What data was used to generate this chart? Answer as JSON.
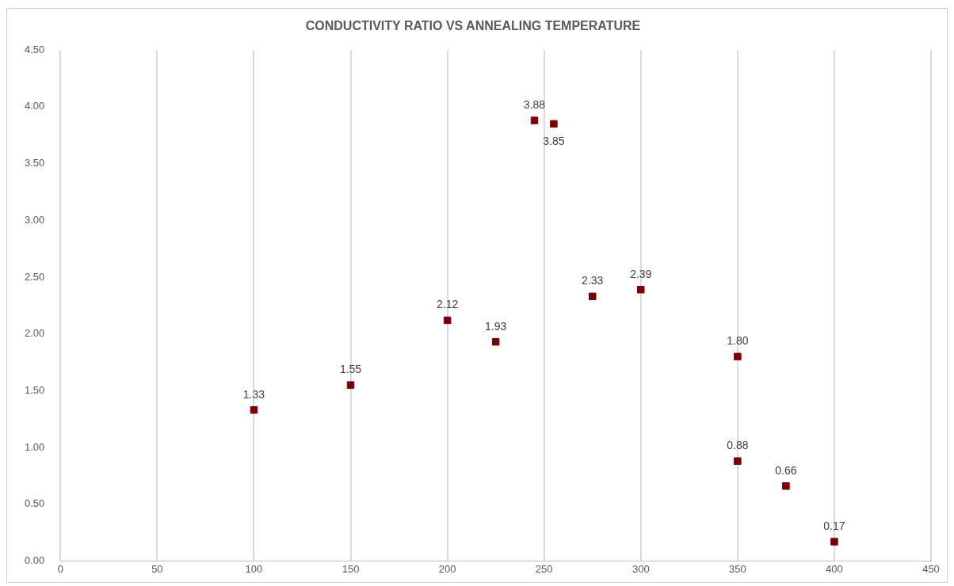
{
  "chart_data": {
    "type": "scatter",
    "title": "CONDUCTIVITY RATIO VS ANNEALING TEMPERATURE",
    "x": [
      100,
      150,
      200,
      225,
      245,
      255,
      275,
      300,
      350,
      350,
      375,
      400
    ],
    "values": [
      1.33,
      1.55,
      2.12,
      1.93,
      3.88,
      3.85,
      2.33,
      2.39,
      1.8,
      0.88,
      0.66,
      0.17
    ],
    "value_labels": [
      "1.33",
      "1.55",
      "2.12",
      "1.93",
      "3.88",
      "3.85",
      "2.33",
      "2.39",
      "1.80",
      "0.88",
      "0.66",
      "0.17"
    ],
    "color": "#7b0000",
    "marker": "square",
    "grid": "x",
    "xlim": [
      0,
      450
    ],
    "xticks": [
      0,
      50,
      100,
      150,
      200,
      250,
      300,
      350,
      400,
      450
    ],
    "ylim": [
      0,
      4.5
    ],
    "yticks": [
      {
        "value": 0,
        "label": "0.00"
      },
      {
        "value": 0.5,
        "label": "0.50"
      },
      {
        "value": 1,
        "label": "1.00"
      },
      {
        "value": 1.5,
        "label": "1.50"
      },
      {
        "value": 2,
        "label": "2.00"
      },
      {
        "value": 2.5,
        "label": "2.50"
      },
      {
        "value": 3,
        "label": "3.00"
      },
      {
        "value": 3.5,
        "label": "3.50"
      },
      {
        "value": 4,
        "label": "4.00"
      },
      {
        "value": 4.5,
        "label": "4.50"
      }
    ]
  }
}
